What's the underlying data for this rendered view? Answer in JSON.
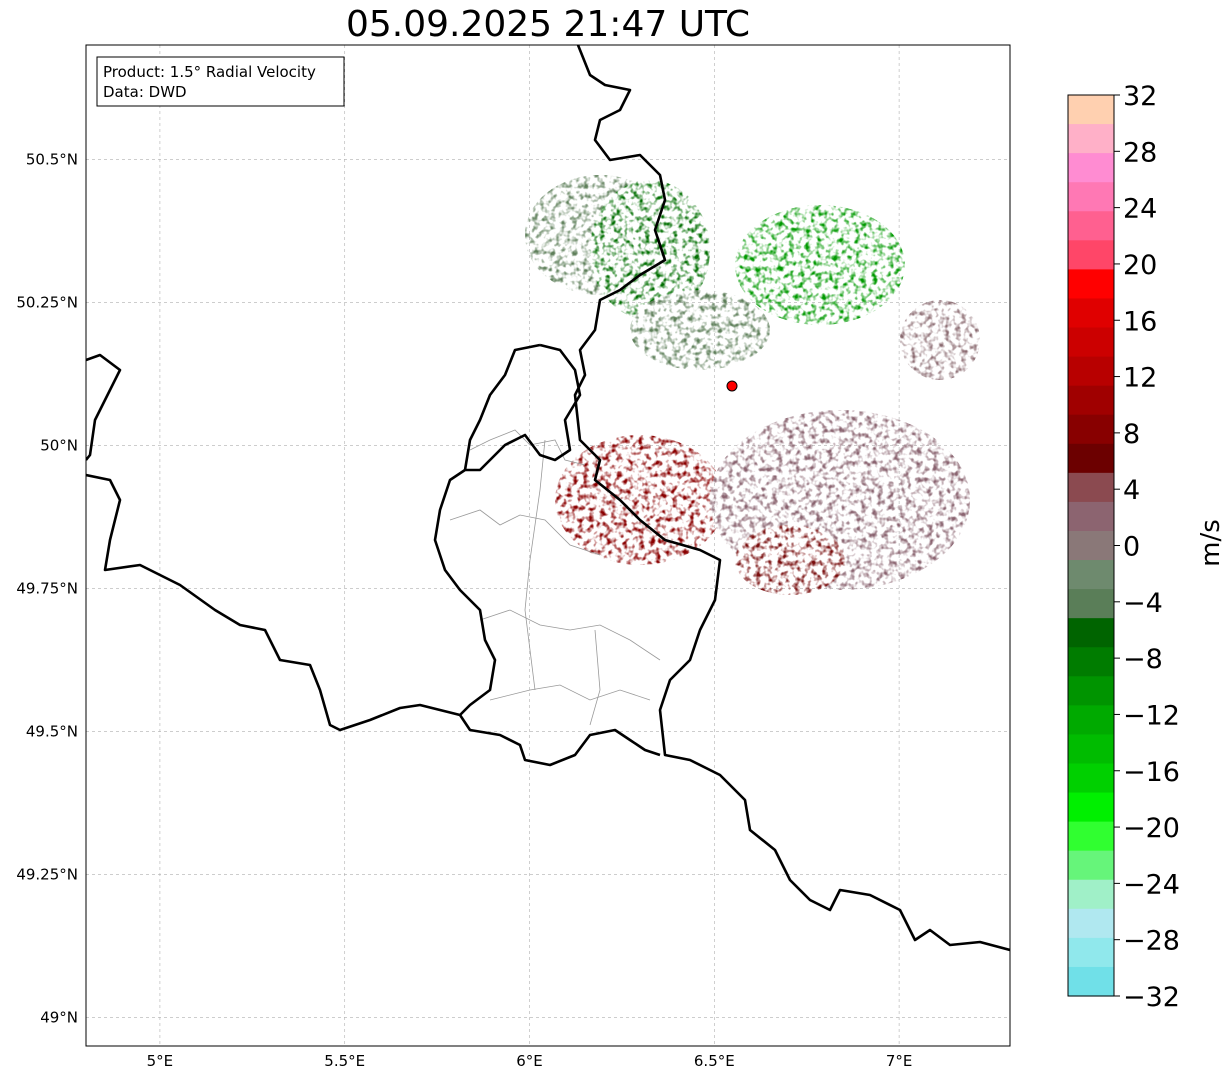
{
  "title": "05.09.2025 21:47 UTC",
  "info_box": {
    "product": "Product: 1.5° Radial Velocity",
    "data": "Data: DWD"
  },
  "map": {
    "lon_range": [
      4.8,
      7.3
    ],
    "lat_range": [
      48.95,
      50.7
    ],
    "lon_ticks": [
      {
        "value": 5.0,
        "label": "5°E"
      },
      {
        "value": 5.5,
        "label": "5.5°E"
      },
      {
        "value": 6.0,
        "label": "6°E"
      },
      {
        "value": 6.5,
        "label": "6.5°E"
      },
      {
        "value": 7.0,
        "label": "7°E"
      }
    ],
    "lat_ticks": [
      {
        "value": 50.5,
        "label": "50.5°N"
      },
      {
        "value": 50.25,
        "label": "50.25°N"
      },
      {
        "value": 50.0,
        "label": "50°N"
      },
      {
        "value": 49.75,
        "label": "49.75°N"
      },
      {
        "value": 49.5,
        "label": "49.5°N"
      },
      {
        "value": 49.25,
        "label": "49.25°N"
      },
      {
        "value": 49.0,
        "label": "49°N"
      }
    ],
    "radar_site": {
      "lon": 6.55,
      "lat": 50.11,
      "color": "#ff0000"
    },
    "gridlines": true
  },
  "colorbar": {
    "unit": "m/s",
    "range": [
      -32,
      32
    ],
    "tick_labels": [
      "32",
      "28",
      "24",
      "20",
      "16",
      "12",
      "8",
      "4",
      "0",
      "−4",
      "−8",
      "−12",
      "−16",
      "−20",
      "−24",
      "−28",
      "−32"
    ],
    "colors_top_to_bottom": [
      "#ffd0b0",
      "#ffb0c8",
      "#ff8cd2",
      "#ff78b4",
      "#ff6090",
      "#ff4668",
      "#ff0000",
      "#e00000",
      "#cc0000",
      "#b80000",
      "#a00000",
      "#880000",
      "#6c0000",
      "#8b4a50",
      "#8c6470",
      "#8a7878",
      "#6e8a6e",
      "#5a7e58",
      "#006400",
      "#007c00",
      "#009400",
      "#00aa00",
      "#00bc00",
      "#00d000",
      "#00f000",
      "#30ff30",
      "#66f57a",
      "#a0f0c8",
      "#b0e8f0",
      "#90e8ec",
      "#70e0e8"
    ]
  },
  "chart_data": {
    "type": "heatmap",
    "title": "05.09.2025 21:47 UTC",
    "xlabel": "",
    "ylabel": "",
    "xlim": [
      4.8,
      7.3
    ],
    "ylim": [
      48.95,
      50.7
    ],
    "color_scale_label": "m/s",
    "color_scale_range": [
      -32,
      32
    ],
    "series": [
      {
        "lon": 6.18,
        "lat": 50.38,
        "value": -2,
        "color": "#5e7f5a"
      },
      {
        "lon": 6.32,
        "lat": 50.36,
        "value": -5,
        "color": "#006e00"
      },
      {
        "lon": 6.75,
        "lat": 50.32,
        "value": -11,
        "color": "#009900"
      },
      {
        "lon": 6.42,
        "lat": 50.18,
        "value": -3,
        "color": "#5e7f5a"
      },
      {
        "lon": 6.35,
        "lat": 49.9,
        "value": 8,
        "color": "#8a0000"
      },
      {
        "lon": 6.85,
        "lat": 49.9,
        "value": 3,
        "color": "#8a6470"
      },
      {
        "lon": 6.75,
        "lat": 49.8,
        "value": 7,
        "color": "#7a1010"
      },
      {
        "lon": 7.05,
        "lat": 50.18,
        "value": 3,
        "color": "#8a6a70"
      }
    ]
  }
}
